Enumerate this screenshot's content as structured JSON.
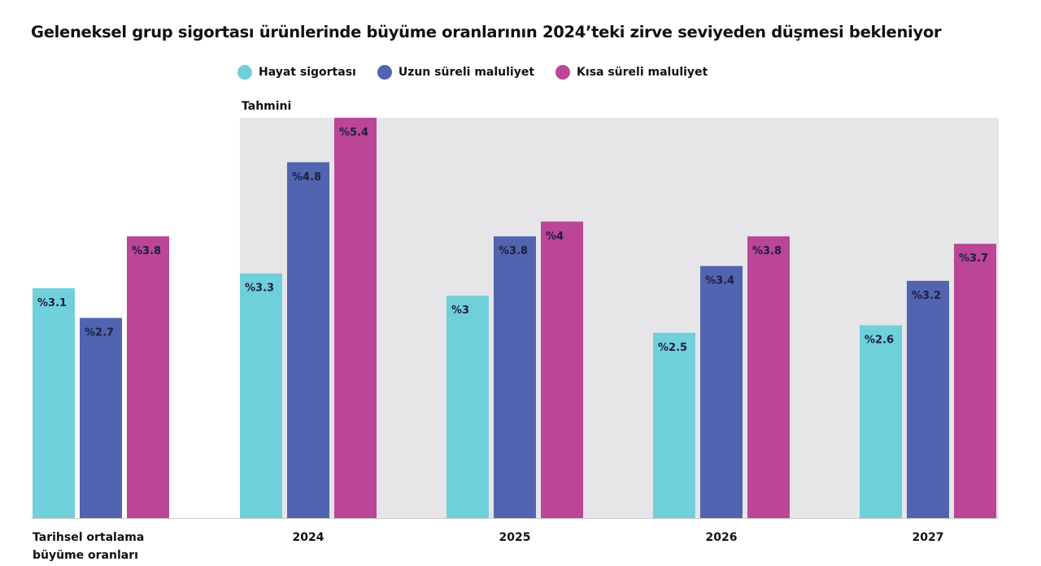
{
  "chart_data": {
    "type": "bar",
    "title": "Geleneksel grup sigortası ürünlerinde büyüme oranlarının 2024’teki zirve seviyeden düşmesi bekleniyor",
    "categories": [
      [
        "Tarihsel ortalama",
        "büyüme oranları"
      ],
      [
        "2024"
      ],
      [
        "2025"
      ],
      [
        "2026"
      ],
      [
        "2027"
      ]
    ],
    "forecast_label": "Tahmini",
    "forecast_categories": [
      "2024",
      "2025",
      "2026",
      "2027"
    ],
    "series": [
      {
        "name": "Hayat sigortası",
        "color": "#6fd0db",
        "values": [
          3.1,
          3.3,
          3.0,
          2.5,
          2.6
        ],
        "labels": [
          "%3.1",
          "%3.3",
          "%3",
          "%2.5",
          "%2.6"
        ]
      },
      {
        "name": "Uzun süreli maluliyet",
        "color": "#5164b0",
        "values": [
          2.7,
          4.8,
          3.8,
          3.4,
          3.2
        ],
        "labels": [
          "%2.7",
          "%4.8",
          "%3.8",
          "%3.4",
          "%3.2"
        ]
      },
      {
        "name": "Kısa süreli maluliyet",
        "color": "#bb4597",
        "values": [
          3.8,
          5.4,
          4.0,
          3.8,
          3.7
        ],
        "labels": [
          "%3.8",
          "%5.4",
          "%4",
          "%3.8",
          "%3.7"
        ]
      }
    ],
    "ylim": [
      0,
      5.4
    ],
    "grid": false,
    "legend_position": "top"
  }
}
